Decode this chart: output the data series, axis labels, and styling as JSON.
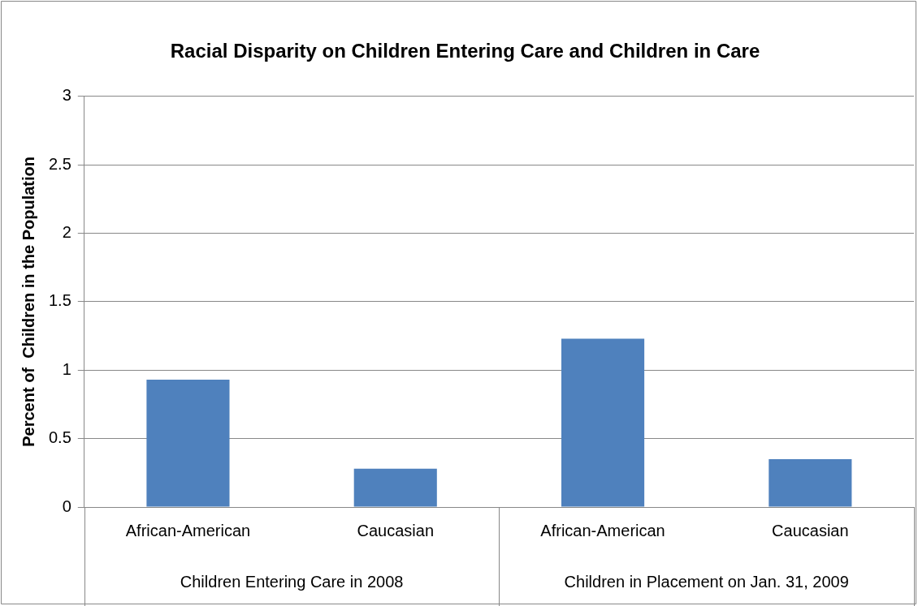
{
  "chart_data": {
    "type": "bar",
    "title": "Racial Disparity on Children Entering Care and Children in Care",
    "ylabel": "Percent of  Children in the Population",
    "categories": [
      "African-American",
      "Caucasian",
      "African-American",
      "Caucasian"
    ],
    "values": [
      0.93,
      0.28,
      1.23,
      0.35
    ],
    "color": "#4f81bd",
    "ylim": [
      0,
      3
    ],
    "yticks": [
      0,
      0.5,
      1,
      1.5,
      2,
      2.5,
      3
    ],
    "grid": "y",
    "annotations": [
      "Children Entering Care in 2008",
      "Children in Placement on Jan. 31, 2009"
    ]
  }
}
